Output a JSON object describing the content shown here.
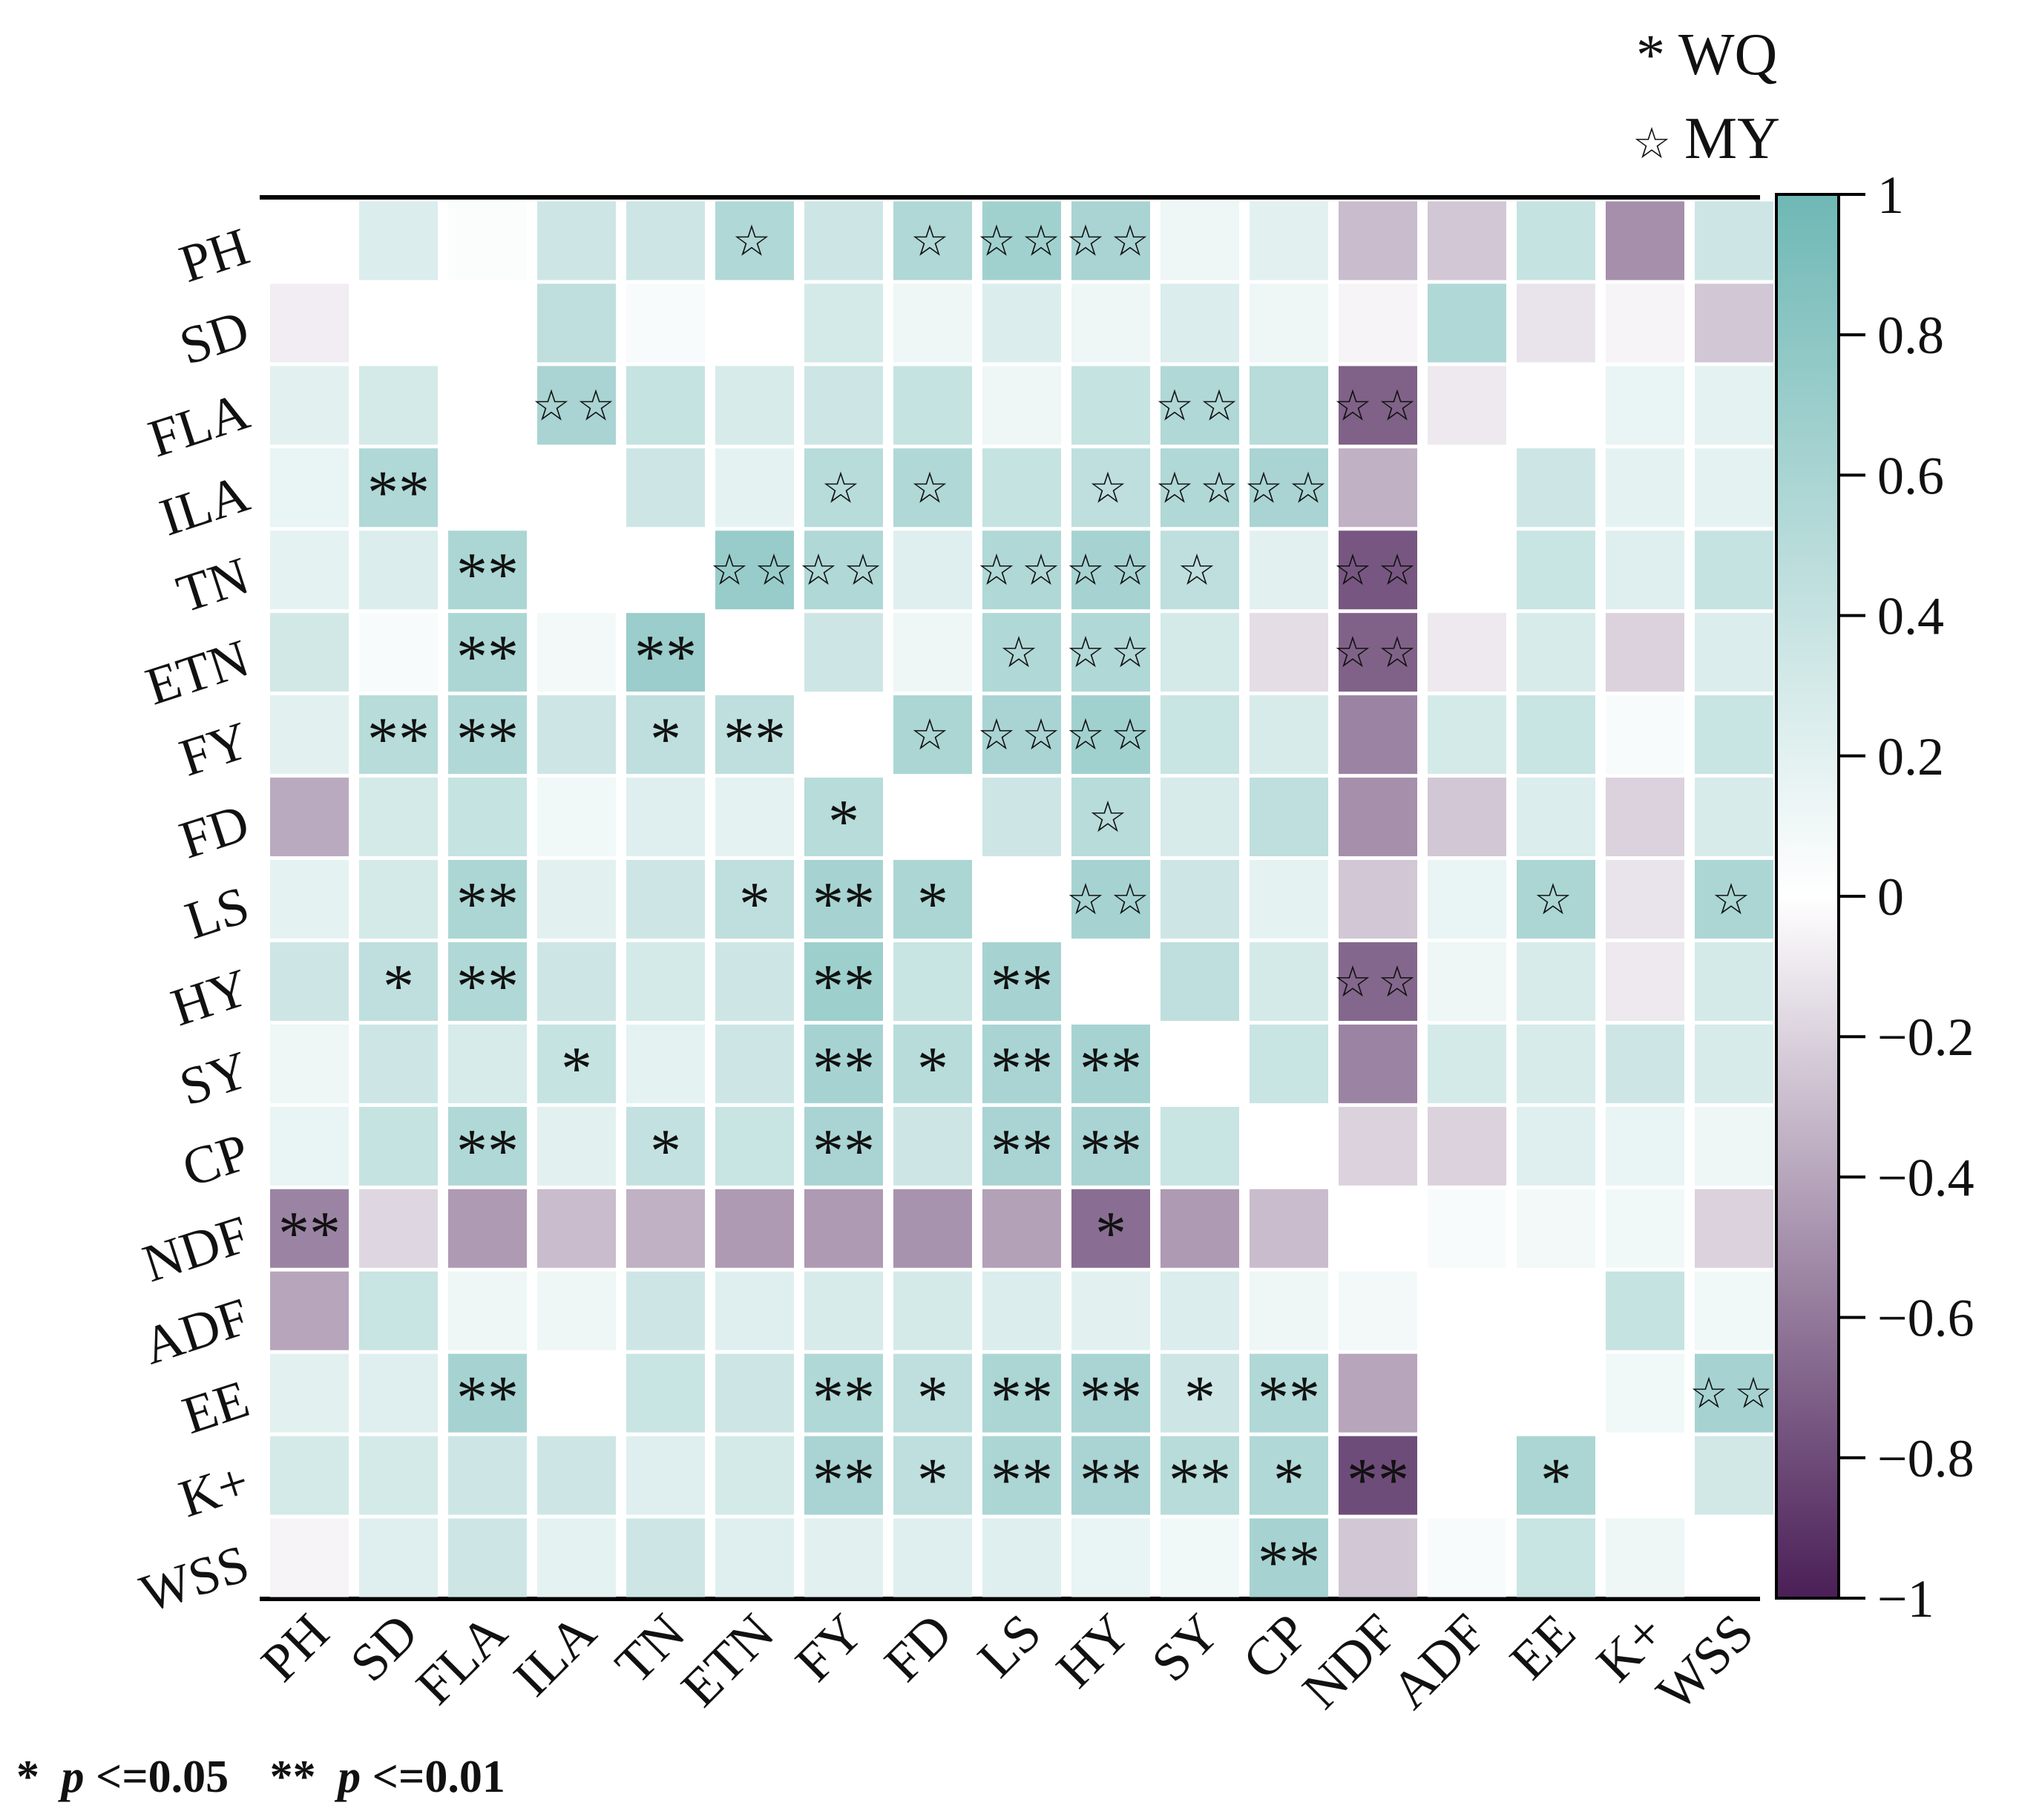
{
  "legend": {
    "wq_symbol": "*",
    "wq_label": "WQ",
    "my_symbol": "☆",
    "my_label": "MY"
  },
  "significance_note": {
    "single_star": "*",
    "single_p": "p",
    "single_rest": "<=0.05",
    "double_star": "**",
    "double_p": "p",
    "double_rest": "<=0.01"
  },
  "colors": {
    "positive": "#6fb8b5",
    "neutral": "#ffffff",
    "negative": "#4a1f57",
    "grid_line": "#000000"
  },
  "chart_data": {
    "type": "heatmap",
    "title": "",
    "variables": [
      "PH",
      "SD",
      "FLA",
      "ILA",
      "TN",
      "ETN",
      "FY",
      "FD",
      "LS",
      "HY",
      "SY",
      "CP",
      "NDF",
      "ADF",
      "EE",
      "K+",
      "WSS"
    ],
    "colorbar": {
      "range": [
        -1,
        1
      ],
      "ticks": [
        1,
        0.8,
        0.6,
        0.4,
        0.2,
        0,
        -0.2,
        -0.4,
        -0.6,
        -0.8,
        -1
      ],
      "tick_labels": [
        "1",
        "0.8",
        "0.6",
        "0.4",
        "0.2",
        "0",
        "−0.2",
        "−0.4",
        "−0.6",
        "−0.8",
        "−1"
      ]
    },
    "values": [
      [
        null,
        0.25,
        0.03,
        0.35,
        0.35,
        0.55,
        0.35,
        0.55,
        0.65,
        0.6,
        0.12,
        0.2,
        -0.3,
        -0.25,
        0.4,
        -0.5,
        0.35
      ],
      [
        -0.08,
        null,
        null,
        0.45,
        0.05,
        null,
        0.3,
        0.12,
        0.25,
        0.12,
        0.25,
        0.12,
        -0.05,
        0.55,
        -0.12,
        -0.05,
        -0.25
      ],
      [
        0.2,
        0.3,
        null,
        0.6,
        0.4,
        0.28,
        0.35,
        0.4,
        0.12,
        0.4,
        0.55,
        0.5,
        -0.7,
        -0.1,
        null,
        0.15,
        0.18
      ],
      [
        0.15,
        0.55,
        null,
        null,
        0.35,
        0.18,
        0.5,
        0.55,
        0.4,
        0.45,
        0.55,
        0.6,
        -0.35,
        null,
        0.35,
        0.18,
        0.18
      ],
      [
        0.18,
        0.25,
        0.58,
        null,
        null,
        0.72,
        0.55,
        0.22,
        0.55,
        0.62,
        0.45,
        0.2,
        -0.75,
        null,
        0.38,
        0.22,
        0.4
      ],
      [
        0.32,
        0.05,
        0.58,
        0.08,
        0.7,
        null,
        0.35,
        0.12,
        0.55,
        0.55,
        0.3,
        -0.15,
        -0.7,
        -0.1,
        0.28,
        -0.2,
        0.25
      ],
      [
        0.2,
        0.5,
        0.55,
        0.35,
        0.45,
        0.45,
        null,
        0.58,
        0.6,
        0.65,
        0.38,
        0.28,
        -0.55,
        0.3,
        0.38,
        0.05,
        0.38
      ],
      [
        -0.38,
        0.3,
        0.4,
        0.1,
        0.22,
        0.18,
        0.5,
        null,
        0.35,
        0.5,
        0.28,
        0.45,
        -0.5,
        -0.25,
        0.25,
        -0.2,
        0.28
      ],
      [
        0.18,
        0.3,
        0.58,
        0.2,
        0.35,
        0.45,
        0.62,
        0.58,
        null,
        0.62,
        0.35,
        0.18,
        -0.25,
        0.15,
        0.58,
        -0.12,
        0.58
      ],
      [
        0.35,
        0.45,
        0.55,
        0.35,
        0.3,
        0.35,
        0.68,
        0.38,
        0.62,
        null,
        0.45,
        0.3,
        -0.68,
        0.12,
        0.28,
        -0.1,
        0.3
      ],
      [
        0.12,
        0.35,
        0.28,
        0.4,
        0.18,
        0.35,
        0.62,
        0.5,
        0.6,
        0.62,
        null,
        0.38,
        -0.55,
        0.3,
        0.28,
        0.35,
        0.28
      ],
      [
        0.15,
        0.4,
        0.55,
        0.2,
        0.42,
        0.38,
        0.6,
        0.35,
        0.6,
        0.6,
        0.38,
        null,
        -0.2,
        -0.2,
        0.22,
        0.15,
        0.12
      ],
      [
        -0.55,
        -0.18,
        -0.45,
        -0.3,
        -0.35,
        -0.45,
        -0.45,
        -0.48,
        -0.42,
        -0.65,
        -0.45,
        -0.3,
        null,
        0.05,
        0.08,
        0.1,
        -0.2
      ],
      [
        -0.4,
        0.38,
        0.12,
        0.12,
        0.35,
        0.22,
        0.28,
        0.3,
        0.25,
        0.2,
        0.25,
        0.12,
        0.08,
        null,
        null,
        0.4,
        0.1
      ],
      [
        0.2,
        0.22,
        0.62,
        null,
        0.38,
        0.35,
        0.55,
        0.45,
        0.58,
        0.6,
        0.35,
        0.55,
        -0.4,
        null,
        null,
        0.1,
        0.62
      ],
      [
        0.3,
        0.3,
        0.35,
        0.35,
        0.22,
        0.3,
        0.6,
        0.45,
        0.58,
        0.6,
        0.5,
        0.55,
        -0.8,
        null,
        0.58,
        null,
        0.32
      ],
      [
        -0.05,
        0.22,
        0.35,
        0.18,
        0.35,
        0.22,
        0.2,
        0.22,
        0.22,
        0.15,
        0.1,
        0.62,
        -0.25,
        0.05,
        0.38,
        0.12,
        null
      ]
    ],
    "annotations": [
      {
        "row": "PH",
        "col": "ETN",
        "text": "☆"
      },
      {
        "row": "PH",
        "col": "FD",
        "text": "☆"
      },
      {
        "row": "PH",
        "col": "LS",
        "text": "☆☆"
      },
      {
        "row": "PH",
        "col": "HY",
        "text": "☆☆"
      },
      {
        "row": "FLA",
        "col": "ILA",
        "text": "☆☆"
      },
      {
        "row": "FLA",
        "col": "SY",
        "text": "☆☆"
      },
      {
        "row": "FLA",
        "col": "NDF",
        "text": "☆☆"
      },
      {
        "row": "ILA",
        "col": "SD",
        "text": "**"
      },
      {
        "row": "ILA",
        "col": "FY",
        "text": "☆"
      },
      {
        "row": "ILA",
        "col": "FD",
        "text": "☆"
      },
      {
        "row": "ILA",
        "col": "HY",
        "text": "☆"
      },
      {
        "row": "ILA",
        "col": "SY",
        "text": "☆☆"
      },
      {
        "row": "ILA",
        "col": "CP",
        "text": "☆☆"
      },
      {
        "row": "TN",
        "col": "FLA",
        "text": "**"
      },
      {
        "row": "TN",
        "col": "ETN",
        "text": "☆☆"
      },
      {
        "row": "TN",
        "col": "FY",
        "text": "☆☆"
      },
      {
        "row": "TN",
        "col": "LS",
        "text": "☆☆"
      },
      {
        "row": "TN",
        "col": "HY",
        "text": "☆☆"
      },
      {
        "row": "TN",
        "col": "SY",
        "text": "☆"
      },
      {
        "row": "TN",
        "col": "NDF",
        "text": "☆☆"
      },
      {
        "row": "ETN",
        "col": "FLA",
        "text": "**"
      },
      {
        "row": "ETN",
        "col": "TN",
        "text": "**"
      },
      {
        "row": "ETN",
        "col": "LS",
        "text": "☆"
      },
      {
        "row": "ETN",
        "col": "HY",
        "text": "☆☆"
      },
      {
        "row": "ETN",
        "col": "NDF",
        "text": "☆☆"
      },
      {
        "row": "FY",
        "col": "SD",
        "text": "**"
      },
      {
        "row": "FY",
        "col": "FLA",
        "text": "**"
      },
      {
        "row": "FY",
        "col": "TN",
        "text": "*"
      },
      {
        "row": "FY",
        "col": "ETN",
        "text": "**"
      },
      {
        "row": "FY",
        "col": "FD",
        "text": "☆"
      },
      {
        "row": "FY",
        "col": "LS",
        "text": "☆☆"
      },
      {
        "row": "FY",
        "col": "HY",
        "text": "☆☆"
      },
      {
        "row": "FD",
        "col": "FY",
        "text": "*"
      },
      {
        "row": "FD",
        "col": "HY",
        "text": "☆"
      },
      {
        "row": "LS",
        "col": "FLA",
        "text": "**"
      },
      {
        "row": "LS",
        "col": "ETN",
        "text": "*"
      },
      {
        "row": "LS",
        "col": "FY",
        "text": "**"
      },
      {
        "row": "LS",
        "col": "FD",
        "text": "*"
      },
      {
        "row": "LS",
        "col": "HY",
        "text": "☆☆"
      },
      {
        "row": "LS",
        "col": "EE",
        "text": "☆"
      },
      {
        "row": "LS",
        "col": "WSS",
        "text": "☆"
      },
      {
        "row": "HY",
        "col": "SD",
        "text": "*"
      },
      {
        "row": "HY",
        "col": "FLA",
        "text": "**"
      },
      {
        "row": "HY",
        "col": "FY",
        "text": "**"
      },
      {
        "row": "HY",
        "col": "LS",
        "text": "**"
      },
      {
        "row": "HY",
        "col": "NDF",
        "text": "☆☆"
      },
      {
        "row": "SY",
        "col": "ILA",
        "text": "*"
      },
      {
        "row": "SY",
        "col": "FY",
        "text": "**"
      },
      {
        "row": "SY",
        "col": "FD",
        "text": "*"
      },
      {
        "row": "SY",
        "col": "LS",
        "text": "**"
      },
      {
        "row": "SY",
        "col": "HY",
        "text": "**"
      },
      {
        "row": "CP",
        "col": "FLA",
        "text": "**"
      },
      {
        "row": "CP",
        "col": "TN",
        "text": "*"
      },
      {
        "row": "CP",
        "col": "FY",
        "text": "**"
      },
      {
        "row": "CP",
        "col": "LS",
        "text": "**"
      },
      {
        "row": "CP",
        "col": "HY",
        "text": "**"
      },
      {
        "row": "NDF",
        "col": "PH",
        "text": "**"
      },
      {
        "row": "NDF",
        "col": "HY",
        "text": "*"
      },
      {
        "row": "EE",
        "col": "FLA",
        "text": "**"
      },
      {
        "row": "EE",
        "col": "FY",
        "text": "**"
      },
      {
        "row": "EE",
        "col": "FD",
        "text": "*"
      },
      {
        "row": "EE",
        "col": "LS",
        "text": "**"
      },
      {
        "row": "EE",
        "col": "HY",
        "text": "**"
      },
      {
        "row": "EE",
        "col": "SY",
        "text": "*"
      },
      {
        "row": "EE",
        "col": "CP",
        "text": "**"
      },
      {
        "row": "EE",
        "col": "WSS",
        "text": "☆☆"
      },
      {
        "row": "K+",
        "col": "FY",
        "text": "**"
      },
      {
        "row": "K+",
        "col": "FD",
        "text": "*"
      },
      {
        "row": "K+",
        "col": "LS",
        "text": "**"
      },
      {
        "row": "K+",
        "col": "HY",
        "text": "**"
      },
      {
        "row": "K+",
        "col": "SY",
        "text": "**"
      },
      {
        "row": "K+",
        "col": "CP",
        "text": "*"
      },
      {
        "row": "K+",
        "col": "NDF",
        "text": "**"
      },
      {
        "row": "K+",
        "col": "EE",
        "text": "*"
      },
      {
        "row": "WSS",
        "col": "CP",
        "text": "**"
      }
    ]
  }
}
